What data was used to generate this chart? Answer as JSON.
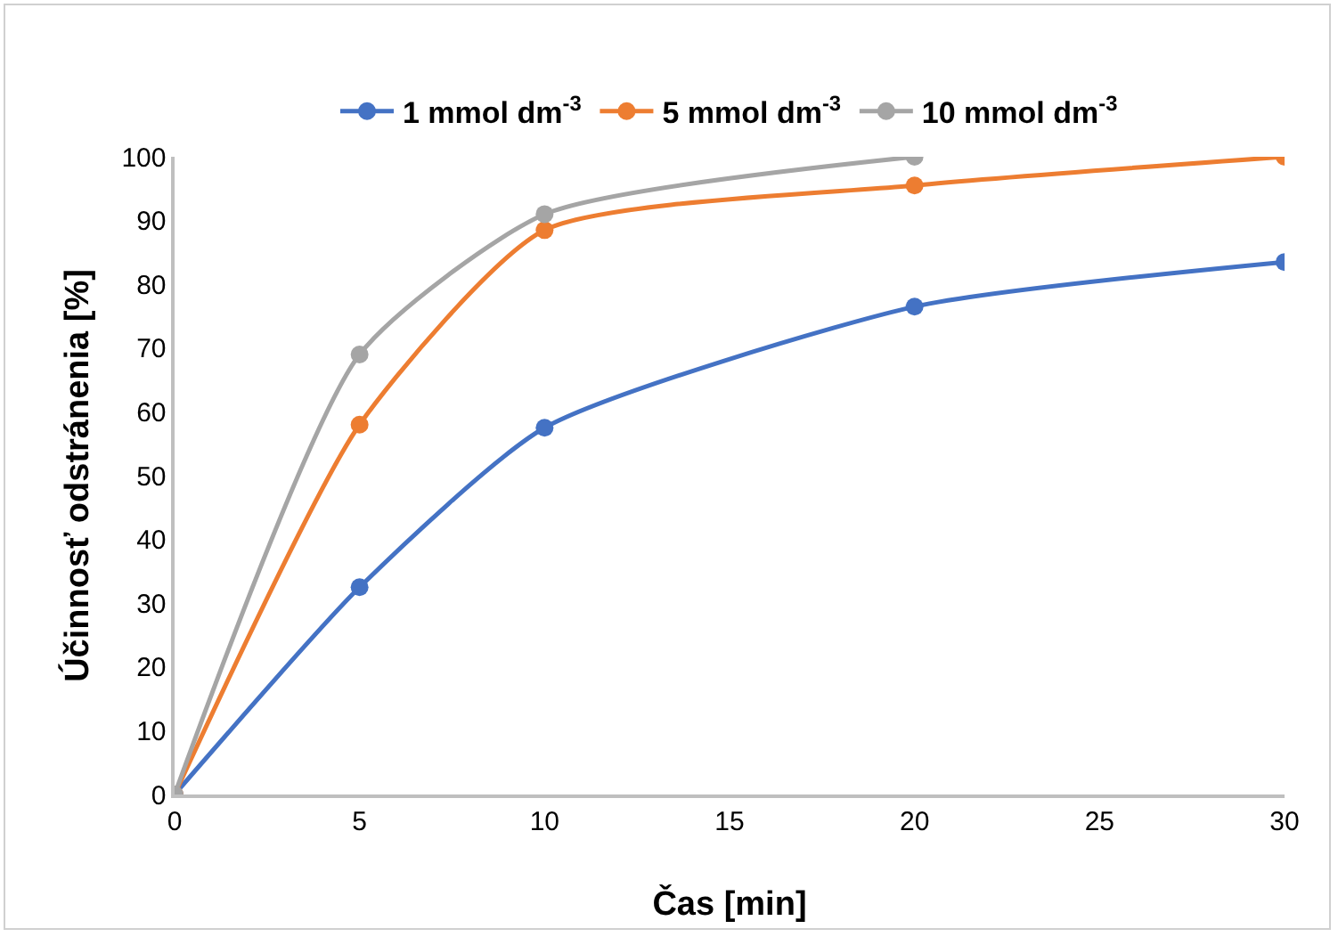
{
  "chart_data": {
    "type": "line",
    "xlabel": "Čas [min]",
    "ylabel": "Účinnosť odstránenia [%]",
    "x": [
      0,
      5,
      10,
      20,
      30
    ],
    "series": [
      {
        "name": "1 mmol dm$^{-3}$",
        "color": "#4472c4",
        "values": [
          0,
          32.5,
          57.5,
          76.5,
          83.5
        ]
      },
      {
        "name": "5 mmol dm$^{-3}$",
        "color": "#ed7d31",
        "values": [
          0,
          58,
          88.5,
          95.5,
          100
        ]
      },
      {
        "name": "10 mmol dm$^{-3}$",
        "color": "#a5a5a5",
        "x": [
          0,
          5,
          10,
          20
        ],
        "values": [
          0,
          69,
          91,
          100
        ]
      }
    ],
    "xlim": [
      0,
      30
    ],
    "xticks": [
      0,
      5,
      10,
      15,
      20,
      25,
      30
    ],
    "ylim": [
      0,
      100
    ],
    "yticks": [
      0,
      10,
      20,
      30,
      40,
      50,
      60,
      70,
      80,
      90,
      100
    ],
    "grid": false,
    "legend": "top",
    "marker": "circle",
    "line_style": "solid"
  }
}
